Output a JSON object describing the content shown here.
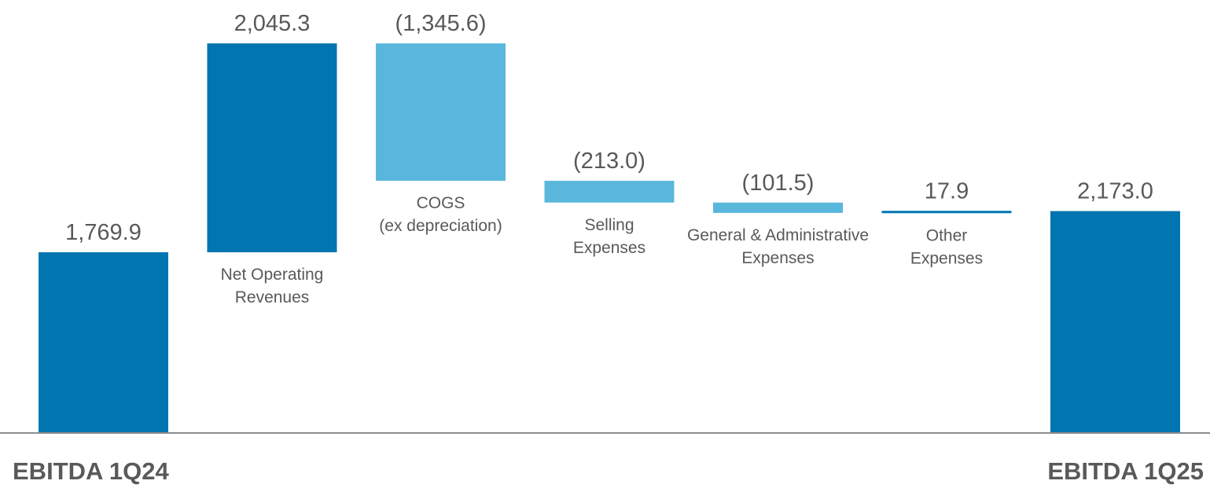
{
  "chart_data": {
    "type": "waterfall",
    "title": "",
    "xlabel": "",
    "ylabel": "",
    "colors": {
      "total": "#0075b0",
      "change": "#5ab7dc",
      "other": "#0075b0",
      "value_label": "#595959",
      "category_label": "#595959",
      "baseline": "#8c8c8c"
    },
    "steps": [
      {
        "label": "EBITDA 1Q24",
        "value": "1,769.9",
        "amount": 1769.9,
        "kind": "total"
      },
      {
        "label": "Net Operating Revenues",
        "label_lines": [
          "Net Operating",
          "Revenues"
        ],
        "value": "2,045.3",
        "amount": 2045.3,
        "kind": "increase"
      },
      {
        "label": "COGS (ex depreciation)",
        "label_lines": [
          "COGS",
          "(ex depreciation)"
        ],
        "value": "(1,345.6)",
        "amount": -1345.6,
        "kind": "decrease"
      },
      {
        "label": "Selling Expenses",
        "label_lines": [
          "Selling",
          "Expenses"
        ],
        "value": "(213.0)",
        "amount": -213.0,
        "kind": "decrease"
      },
      {
        "label": "General & Administrative Expenses",
        "label_lines": [
          "General & Administrative",
          "Expenses"
        ],
        "value": "(101.5)",
        "amount": -101.5,
        "kind": "decrease"
      },
      {
        "label": "Other Expenses",
        "label_lines": [
          "Other",
          "Expenses"
        ],
        "value": "17.9",
        "amount": 17.9,
        "kind": "increase"
      },
      {
        "label": "EBITDA 1Q25",
        "value": "2,173.0",
        "amount": 2173.0,
        "kind": "total"
      }
    ]
  },
  "axis_labels": {
    "start": "EBITDA 1Q24",
    "end": "EBITDA 1Q25"
  }
}
